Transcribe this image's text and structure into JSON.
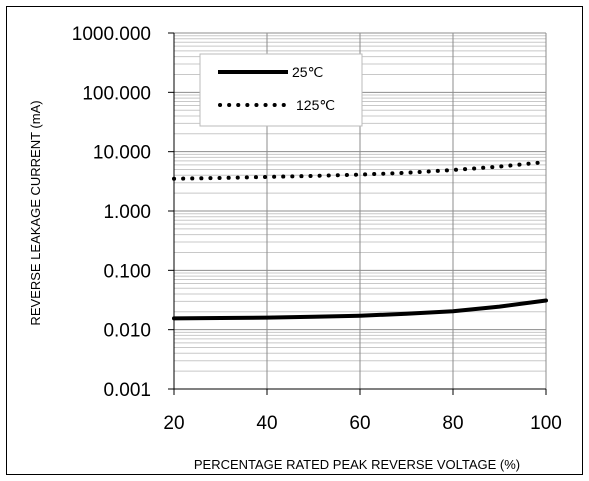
{
  "chart_data": {
    "type": "line",
    "title": "",
    "xlabel": "PERCENTAGE RATED PEAK REVERSE VOLTAGE (%)",
    "ylabel": "REVERSE LEAKAGE CURRENT (mA)",
    "xlim": [
      20,
      100
    ],
    "ylim": [
      0.001,
      1000
    ],
    "y_scale": "log",
    "grid": true,
    "legend_position": "top-left",
    "x_ticks": [
      "20",
      "40",
      "60",
      "80",
      "100"
    ],
    "y_ticks": [
      "0.001",
      "0.010",
      "0.100",
      "1.000",
      "10.000",
      "100.000",
      "1000.000"
    ],
    "series": [
      {
        "name": "25℃",
        "style": "solid",
        "color": "#000000",
        "x": [
          20,
          30,
          40,
          50,
          60,
          70,
          80,
          90,
          100
        ],
        "y": [
          0.0155,
          0.0157,
          0.016,
          0.0165,
          0.0172,
          0.0185,
          0.0205,
          0.0245,
          0.031
        ]
      },
      {
        "name": "125℃",
        "style": "dotted",
        "color": "#000000",
        "x": [
          20,
          30,
          40,
          50,
          60,
          70,
          80,
          90,
          100
        ],
        "y": [
          3.5,
          3.6,
          3.75,
          3.9,
          4.1,
          4.4,
          4.9,
          5.6,
          6.7
        ]
      }
    ]
  }
}
